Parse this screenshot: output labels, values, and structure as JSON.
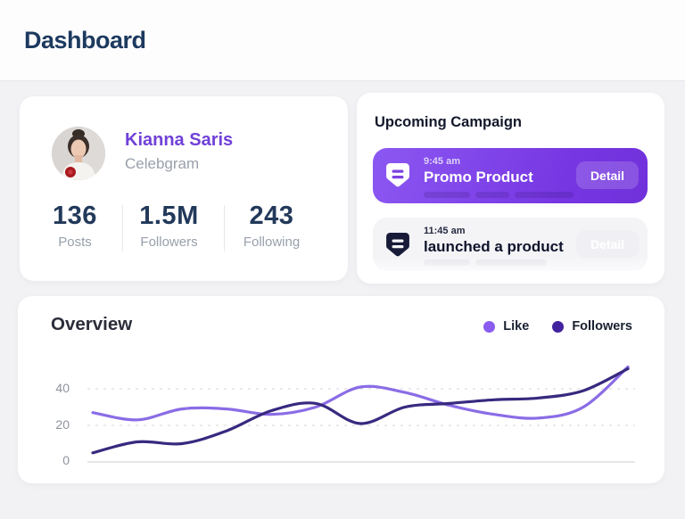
{
  "page": {
    "title": "Dashboard"
  },
  "profile": {
    "name": "Kianna Saris",
    "subtitle": "Celebgram",
    "stats": [
      {
        "value": "136",
        "label": "Posts"
      },
      {
        "value": "1.5M",
        "label": "Followers"
      },
      {
        "value": "243",
        "label": "Following"
      }
    ]
  },
  "campaign": {
    "title": "Upcoming Campaign",
    "items": [
      {
        "time": "9:45 am",
        "title": "Promo Product",
        "action": "Detail",
        "highlighted": true
      },
      {
        "time": "11:45 am",
        "title": "launched a product",
        "action": "Detail",
        "highlighted": false
      }
    ],
    "accent_color": "#7b42e2"
  },
  "overview": {
    "title": "Overview",
    "legend": [
      {
        "label": "Like",
        "color": "#8a5cf0"
      },
      {
        "label": "Followers",
        "color": "#42239f"
      }
    ]
  },
  "chart_data": {
    "type": "line",
    "title": "Overview",
    "yticks": [
      0,
      20,
      40
    ],
    "ylim": [
      0,
      55
    ],
    "grid": "horizontal-dashed",
    "legend_position": "top-right",
    "x": [
      0,
      1,
      2,
      3,
      4,
      5,
      6,
      7,
      8,
      9,
      10,
      11,
      12
    ],
    "series": [
      {
        "name": "Like",
        "color": "#8a6ce6",
        "values": [
          27,
          23,
          29,
          29,
          26,
          30,
          41,
          38,
          31,
          26,
          24,
          30,
          52
        ]
      },
      {
        "name": "Followers",
        "color": "#38297f",
        "values": [
          5,
          11,
          10,
          17,
          28,
          32,
          21,
          30,
          32,
          34,
          35,
          39,
          51
        ]
      }
    ]
  }
}
